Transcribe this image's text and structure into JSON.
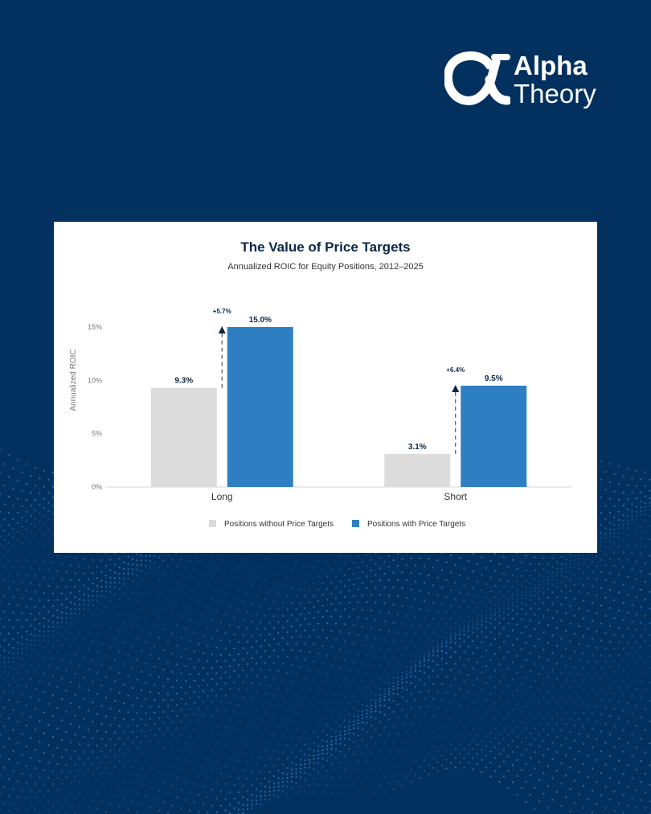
{
  "colors": {
    "background": "#03315f",
    "dots": "#2f7cc4",
    "card": "#ffffff",
    "bar_without": "#dcdcdc",
    "bar_with": "#2e7fc1",
    "title": "#0c2748",
    "text": "#333333",
    "axis_text": "#777777"
  },
  "logo": {
    "icon": "alpha-glyph-icon",
    "line1": "Alpha",
    "line2": "Theory"
  },
  "chart_data": {
    "type": "bar",
    "title": "The Value of Price Targets",
    "subtitle": "Annualized ROIC for Equity Positions, 2012–2025",
    "ylabel": "Annualized ROIC",
    "xlabel": "",
    "categories": [
      "Long",
      "Short"
    ],
    "ylim": [
      0,
      15
    ],
    "yticks": [
      0,
      5,
      10,
      15
    ],
    "ytick_labels": [
      "0%",
      "5%",
      "10%",
      "15%"
    ],
    "grid": false,
    "legend_position": "bottom",
    "series": [
      {
        "name": "Positions without Price Targets",
        "values": [
          9.3,
          3.1
        ],
        "labels": [
          "9.3%",
          "3.1%"
        ],
        "color": "#dcdcdc"
      },
      {
        "name": "Positions with Price Targets",
        "values": [
          15.0,
          9.5
        ],
        "labels": [
          "15.0%",
          "9.5%"
        ],
        "color": "#2e7fc1"
      }
    ],
    "annotations": [
      {
        "category": "Long",
        "text": "+5.7%",
        "from": 9.3,
        "to": 15.0
      },
      {
        "category": "Short",
        "text": "+6.4%",
        "from": 3.1,
        "to": 9.5
      }
    ]
  }
}
